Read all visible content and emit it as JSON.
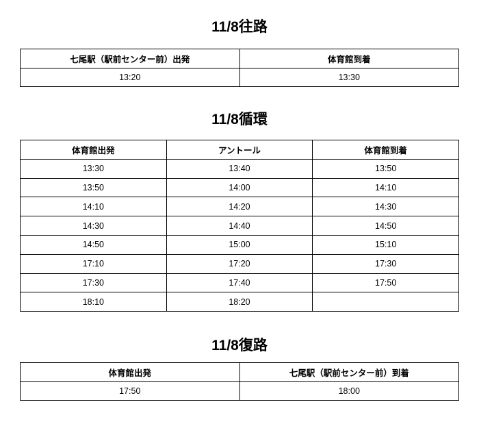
{
  "sections": [
    {
      "title": "11/8往路",
      "headers": [
        "七尾駅（駅前センター前）出発",
        "体育館到着"
      ],
      "rows": [
        [
          "13:20",
          "13:30"
        ]
      ]
    },
    {
      "title": "11/8循環",
      "headers": [
        "体育館出発",
        "アントール",
        "体育館到着"
      ],
      "rows": [
        [
          "13:30",
          "13:40",
          "13:50"
        ],
        [
          "13:50",
          "14:00",
          "14:10"
        ],
        [
          "14:10",
          "14:20",
          "14:30"
        ],
        [
          "14:30",
          "14:40",
          "14:50"
        ],
        [
          "14:50",
          "15:00",
          "15:10"
        ],
        [
          "17:10",
          "17:20",
          "17:30"
        ],
        [
          "17:30",
          "17:40",
          "17:50"
        ],
        [
          "18:10",
          "18:20",
          ""
        ]
      ]
    },
    {
      "title": "11/8復路",
      "headers": [
        "体育館出発",
        "七尾駅（駅前センター前）到着"
      ],
      "rows": [
        [
          "17:50",
          "18:00"
        ]
      ]
    }
  ]
}
